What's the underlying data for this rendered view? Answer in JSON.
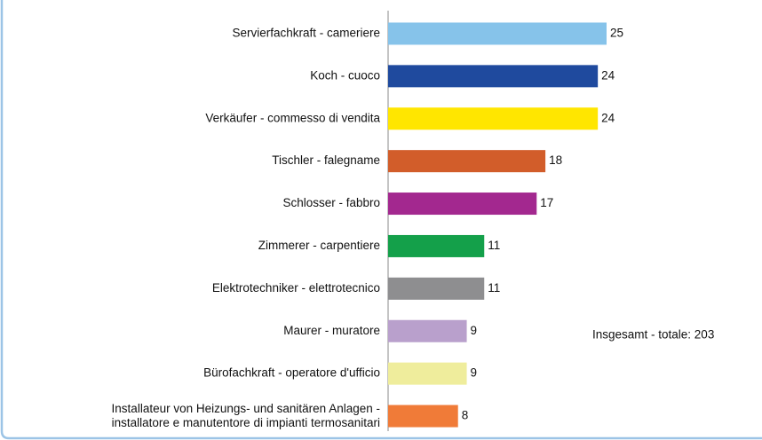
{
  "chart_data": {
    "type": "bar",
    "orientation": "horizontal",
    "categories": [
      "Servierfachkraft - cameriere",
      "Koch - cuoco",
      "Verkäufer - commesso di vendita",
      "Tischler - falegname",
      "Schlosser - fabbro",
      "Zimmerer - carpentiere",
      "Elektrotechniker - elettrotecnico",
      "Maurer - muratore",
      "Bürofachkraft - operatore d'ufficio",
      "Installateur von Heizungs- und sanitären Anlagen -\ninstallatore e manutentore di impianti termosanitari"
    ],
    "values": [
      25,
      24,
      24,
      18,
      17,
      11,
      11,
      9,
      9,
      8
    ],
    "colors": [
      "#86c3ea",
      "#1f4a9e",
      "#ffe600",
      "#d25d2a",
      "#a3288f",
      "#14a04a",
      "#8e8e90",
      "#b9a0cc",
      "#efed9c",
      "#f07b38"
    ],
    "annotation": "Insgesamt - totale: 203"
  }
}
